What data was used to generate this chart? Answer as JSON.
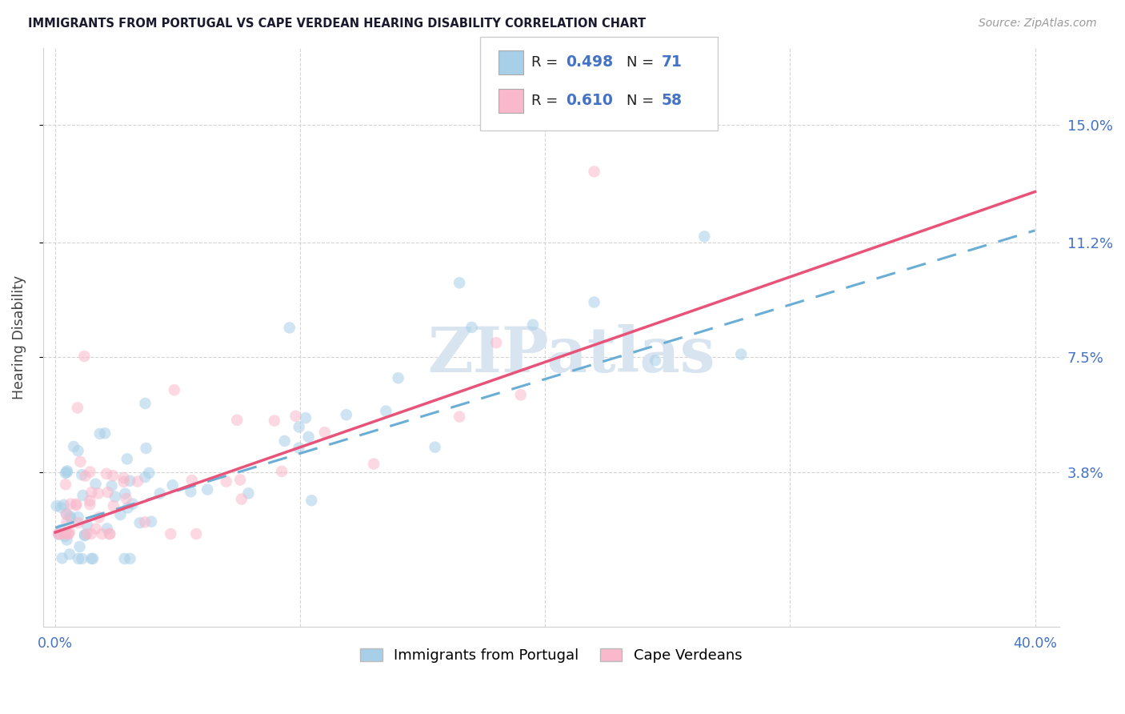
{
  "title": "IMMIGRANTS FROM PORTUGAL VS CAPE VERDEAN HEARING DISABILITY CORRELATION CHART",
  "source": "Source: ZipAtlas.com",
  "ylabel": "Hearing Disability",
  "y_tick_vals": [
    3.8,
    7.5,
    11.2,
    15.0
  ],
  "y_tick_labels": [
    "3.8%",
    "7.5%",
    "11.2%",
    "15.0%"
  ],
  "legend1_label": "Immigrants from Portugal",
  "legend2_label": "Cape Verdeans",
  "legend1_R": "0.498",
  "legend1_N": "71",
  "legend2_R": "0.610",
  "legend2_N": "58",
  "color_blue": "#a8cfe8",
  "color_pink": "#f9b8cb",
  "color_trendline_blue": "#6aaed6",
  "color_trendline_pink": "#e8537a",
  "watermark": "ZIPatlas",
  "watermark_color": "#d8e4f0",
  "background": "#ffffff",
  "grid_color": "#d0d0d0",
  "title_color": "#1a1a2e",
  "axis_label_color": "#4472c4",
  "x_min": 0.0,
  "x_max": 40.0,
  "y_min": 0.0,
  "y_max": 16.5,
  "blue_intercept": 2.2,
  "blue_slope": 0.268,
  "pink_intercept": 1.8,
  "pink_slope": 0.29
}
